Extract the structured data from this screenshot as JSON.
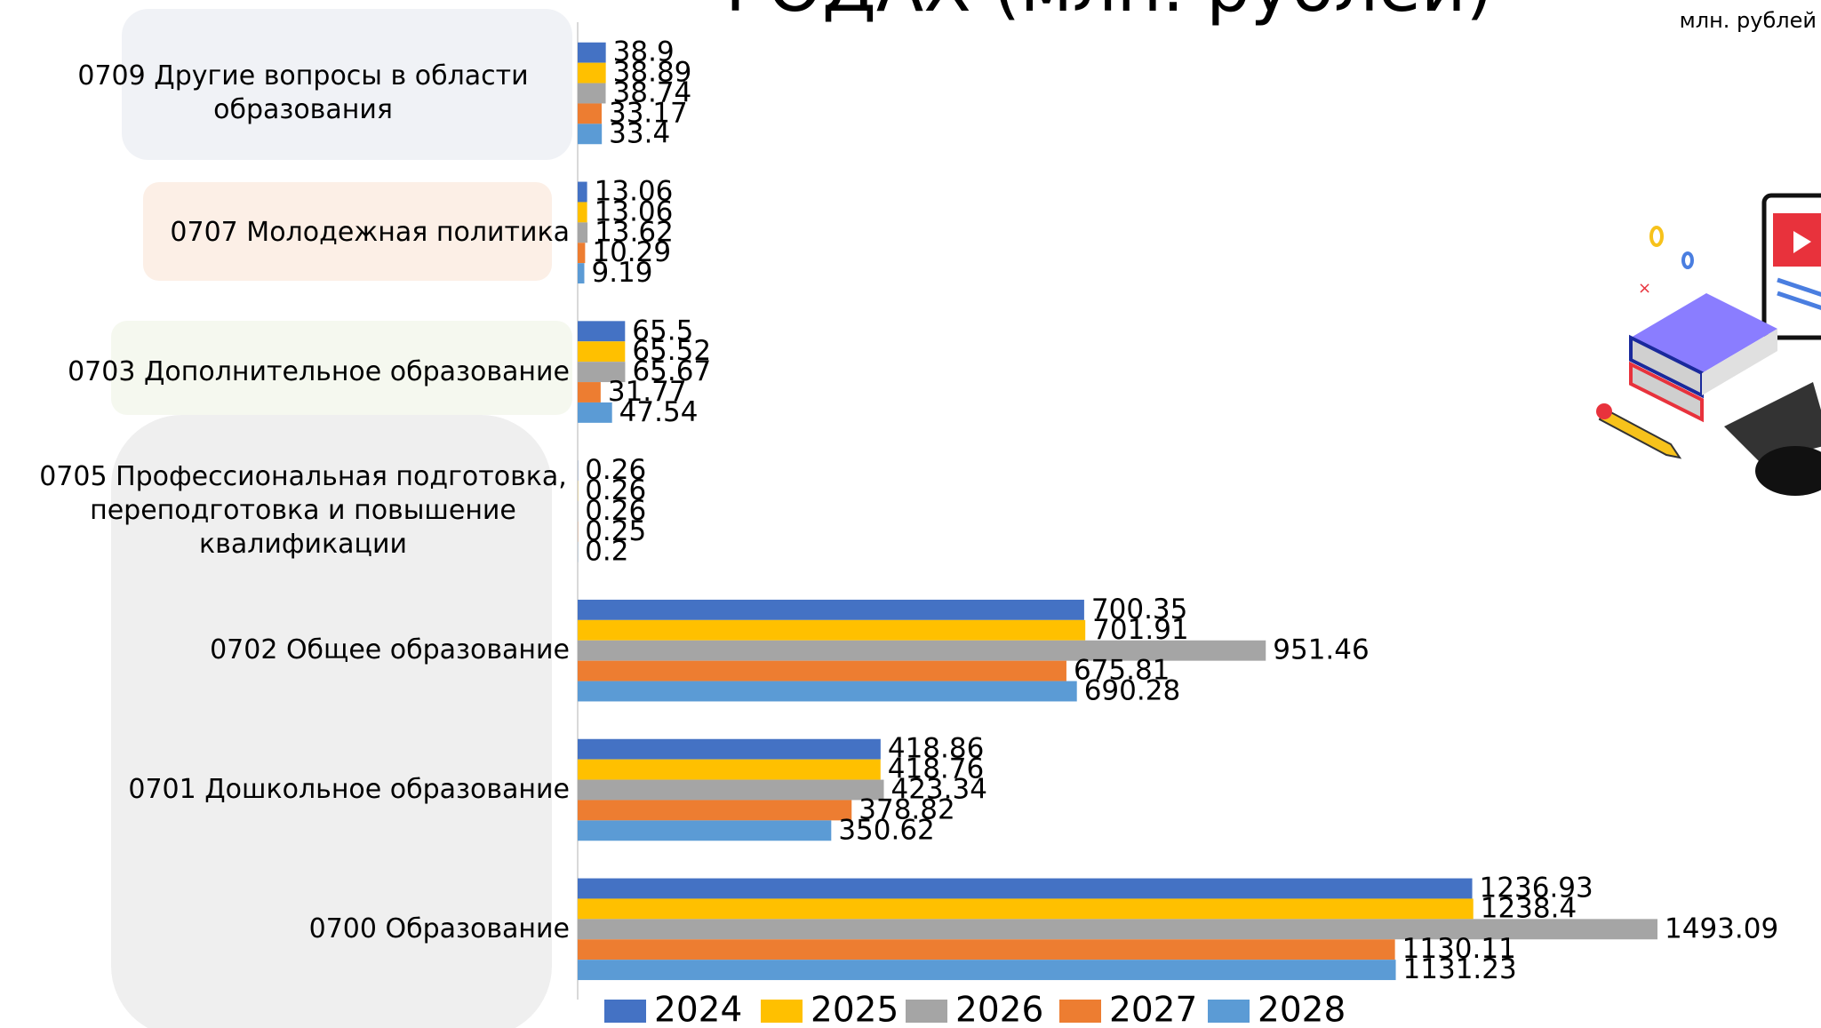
{
  "chart_data": {
    "type": "bar",
    "orientation": "horizontal",
    "title": "ГОДАХ (млн. рублей)",
    "unit_label": "млн. рублей",
    "categories": [
      "0709 Другие вопросы в области образования",
      "0707 Молодежная политика",
      "0703 Дополнительное образование",
      "0705 Профессиональная подготовка, переподготовка и повышение квалификации",
      "0702 Общее образование",
      "0701 Дошкольное образование",
      "0700 Образование"
    ],
    "series": [
      {
        "name": "2024",
        "color": "#4472c4",
        "values": [
          38.9,
          13.06,
          65.5,
          0.26,
          700.35,
          418.86,
          1236.93
        ]
      },
      {
        "name": "2025",
        "color": "#ffc000",
        "values": [
          38.89,
          13.06,
          65.52,
          0.26,
          701.91,
          418.76,
          1238.4
        ]
      },
      {
        "name": "2026",
        "color": "#a5a5a5",
        "values": [
          38.74,
          13.62,
          65.67,
          0.26,
          951.46,
          423.34,
          1493.09
        ]
      },
      {
        "name": "2027",
        "color": "#ed7d31",
        "values": [
          33.17,
          10.29,
          31.77,
          0.25,
          675.81,
          378.82,
          1130.11
        ]
      },
      {
        "name": "2028",
        "color": "#5b9bd5",
        "values": [
          33.4,
          9.19,
          47.54,
          0.2,
          690.28,
          350.62,
          1131.23
        ]
      }
    ],
    "xlim": [
      0,
      1600
    ],
    "legend": "bottom"
  }
}
